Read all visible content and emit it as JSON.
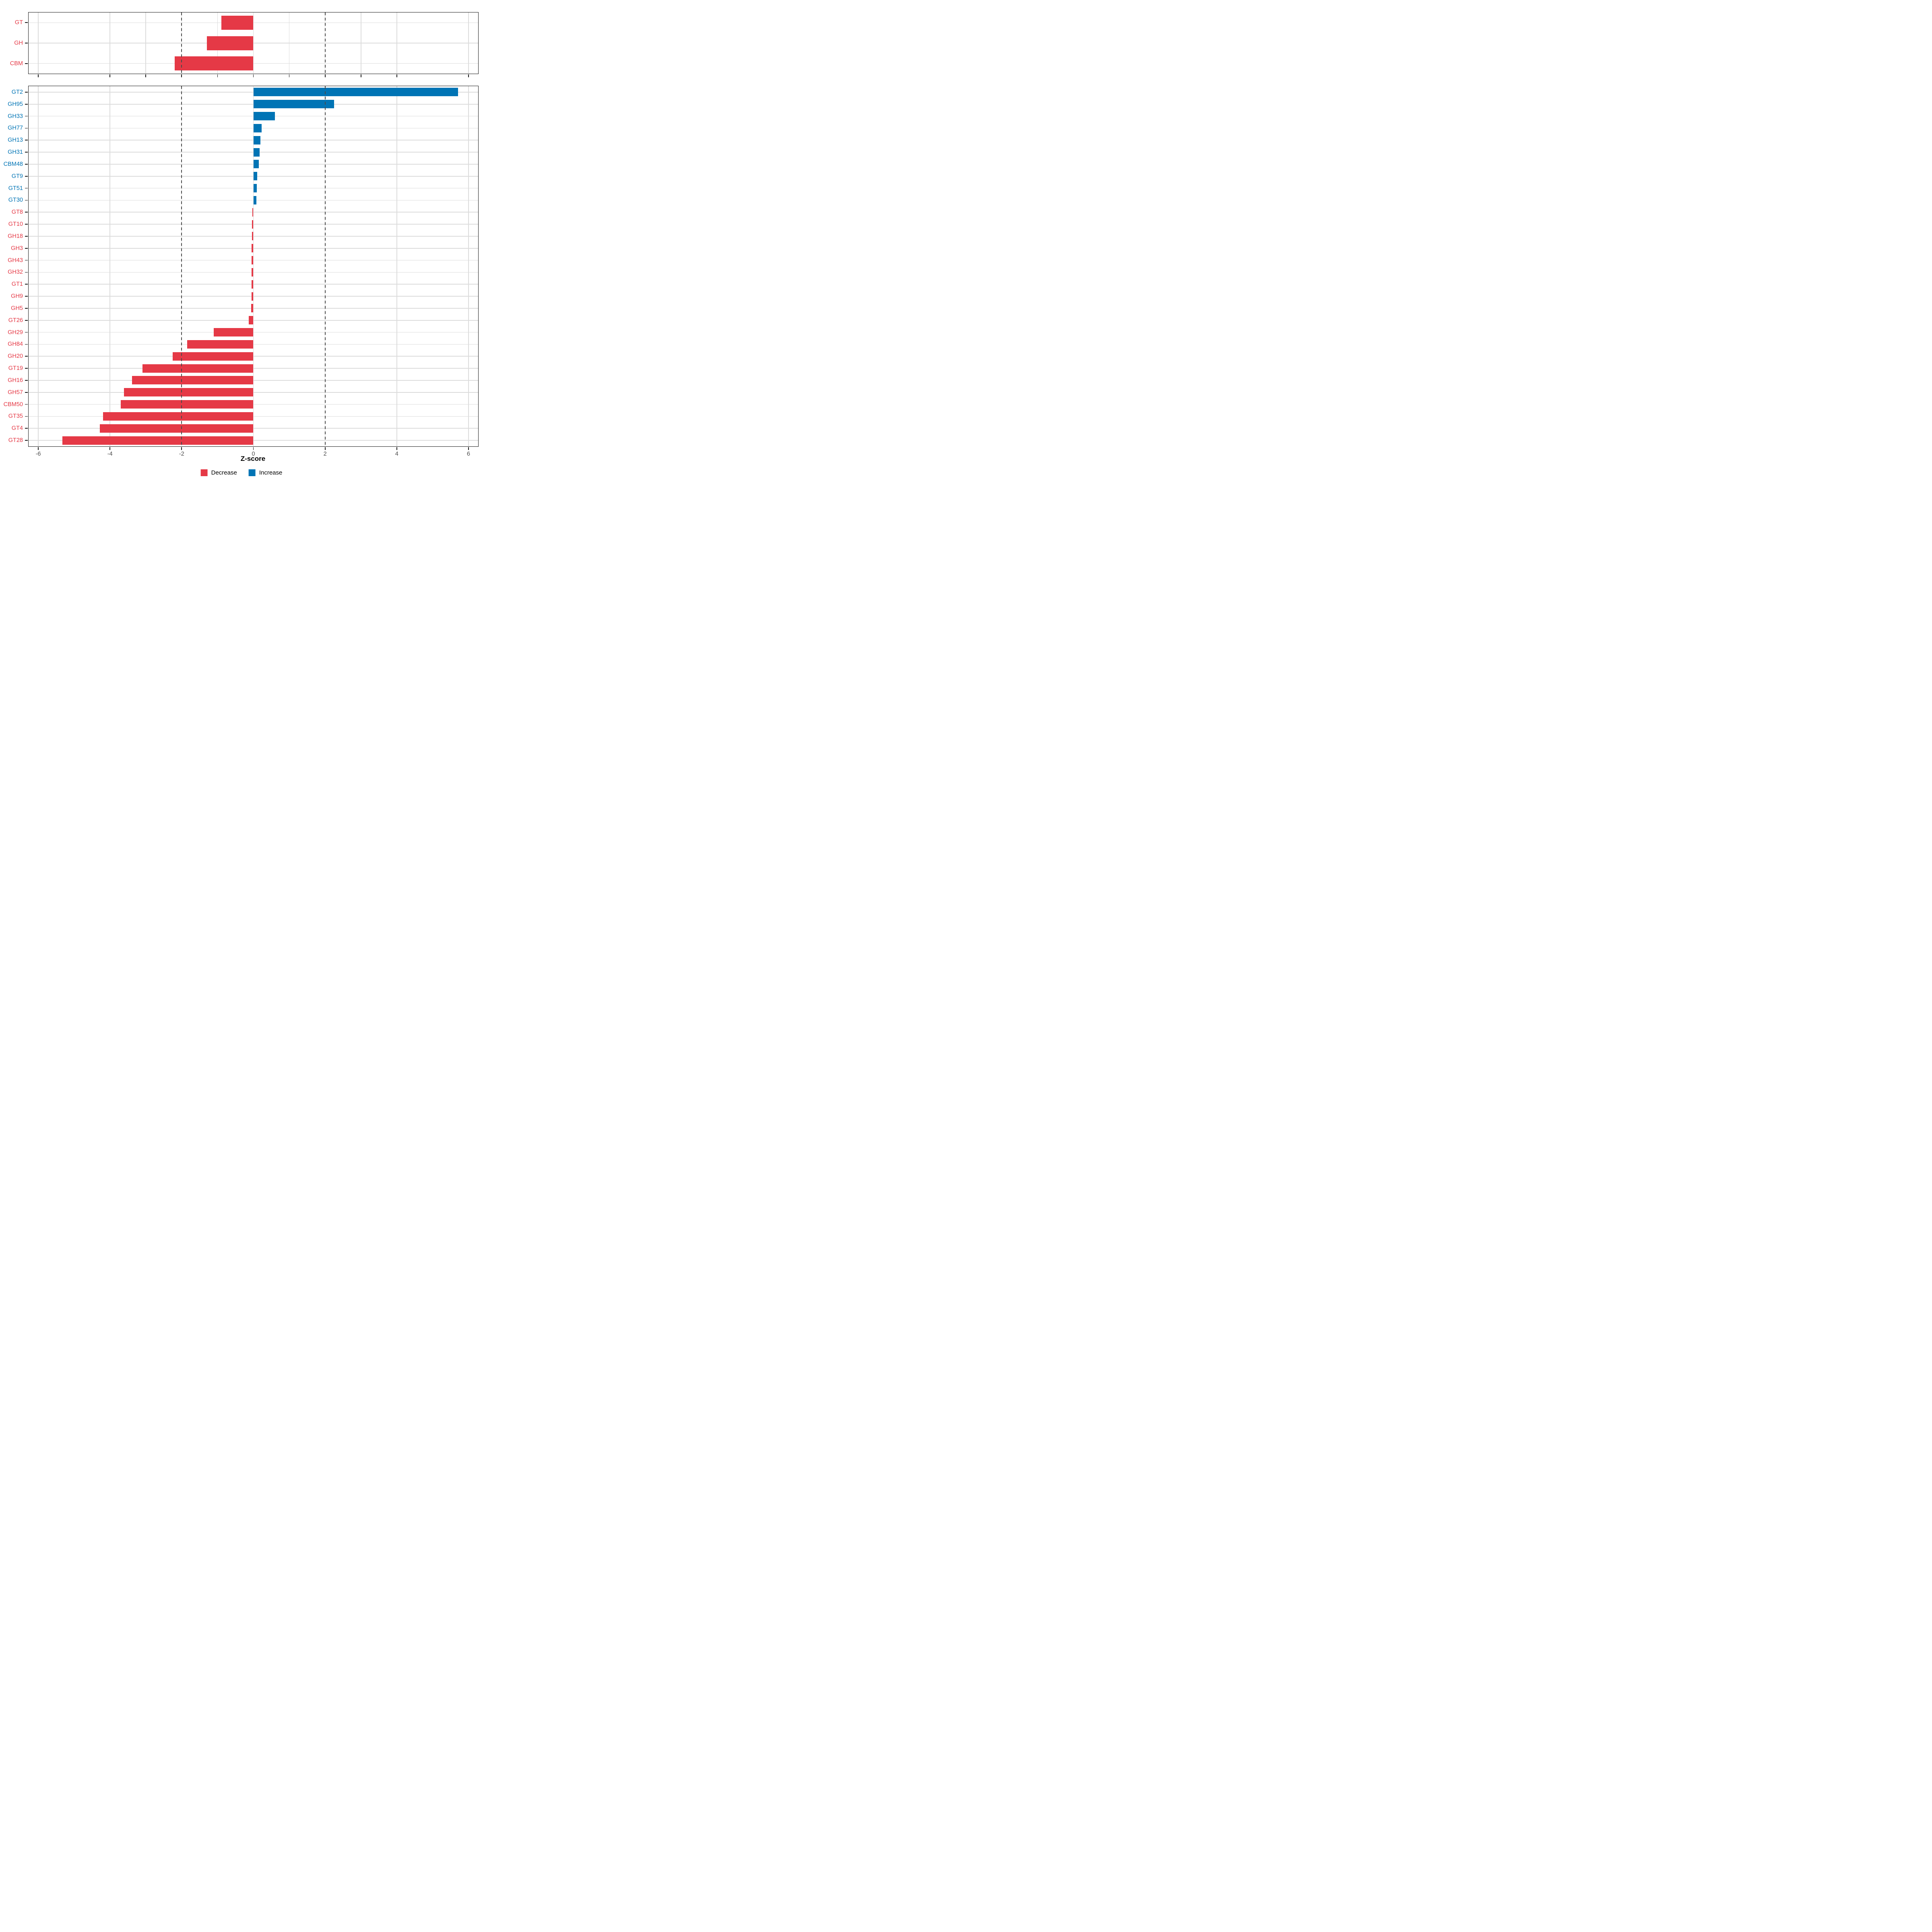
{
  "chart_data": {
    "type": "bar",
    "orientation": "horizontal",
    "title": "",
    "xlabel": "Z-score",
    "xlim": [
      -6.27,
      6.27
    ],
    "dashed_vlines": [
      -2,
      2
    ],
    "x_axis": {
      "ticks": [
        -6,
        -4,
        -2,
        0,
        2,
        4,
        6
      ],
      "tick_labels": [
        "-6",
        "-4",
        "-2",
        "0",
        "2",
        "4",
        "6"
      ]
    },
    "panels": [
      {
        "name": "class-summary",
        "categories": [
          "GT",
          "GH",
          "CBM"
        ],
        "values": [
          -0.89,
          -1.3,
          -2.19
        ],
        "grid_x": [
          -6,
          -4,
          -3,
          -2,
          -1,
          0,
          1,
          2,
          3,
          4,
          6
        ],
        "bottom_ticks": [
          -6,
          -4,
          -3,
          -2,
          -1,
          0,
          1,
          2,
          3,
          4,
          6
        ],
        "show_tick_labels": false
      },
      {
        "name": "family-detail",
        "categories": [
          "GT2",
          "GH95",
          "GH33",
          "GH77",
          "GH13",
          "GH31",
          "CBM48",
          "GT9",
          "GT51",
          "GT30",
          "GT8",
          "GT10",
          "GH18",
          "GH3",
          "GH43",
          "GH32",
          "GT1",
          "GH9",
          "GH5",
          "GT26",
          "GH29",
          "GH84",
          "GH20",
          "GT19",
          "GH16",
          "GH57",
          "CBM50",
          "GT35",
          "GT4",
          "GT28"
        ],
        "values": [
          5.71,
          2.25,
          0.6,
          0.23,
          0.2,
          0.17,
          0.15,
          0.11,
          0.095,
          0.083,
          -0.03,
          -0.035,
          -0.04,
          -0.047,
          -0.049,
          -0.051,
          -0.055,
          -0.056,
          -0.057,
          -0.13,
          -1.11,
          -1.85,
          -2.25,
          -3.09,
          -3.39,
          -3.61,
          -3.7,
          -4.19,
          -4.28,
          -5.33
        ],
        "grid_x": [
          -6,
          -4,
          -2,
          0,
          2,
          4,
          6
        ],
        "bottom_ticks": [
          -6,
          -4,
          -2,
          0,
          2,
          4,
          6
        ],
        "show_tick_labels": true
      }
    ],
    "legend": [
      {
        "label": "Decrease",
        "color": "#E53946"
      },
      {
        "label": "Increase",
        "color": "#0074B5"
      }
    ],
    "colors": {
      "decrease": "#E53946",
      "increase": "#0074B5",
      "gridline": "#DCDCDC",
      "dashed_line": "#4A4A4A",
      "panel_border": "#1A1A1A",
      "tick_label_text": "#4D4D4D",
      "axis_title_text": "#000000"
    },
    "legend_position": "bottom-center",
    "grid": true
  }
}
